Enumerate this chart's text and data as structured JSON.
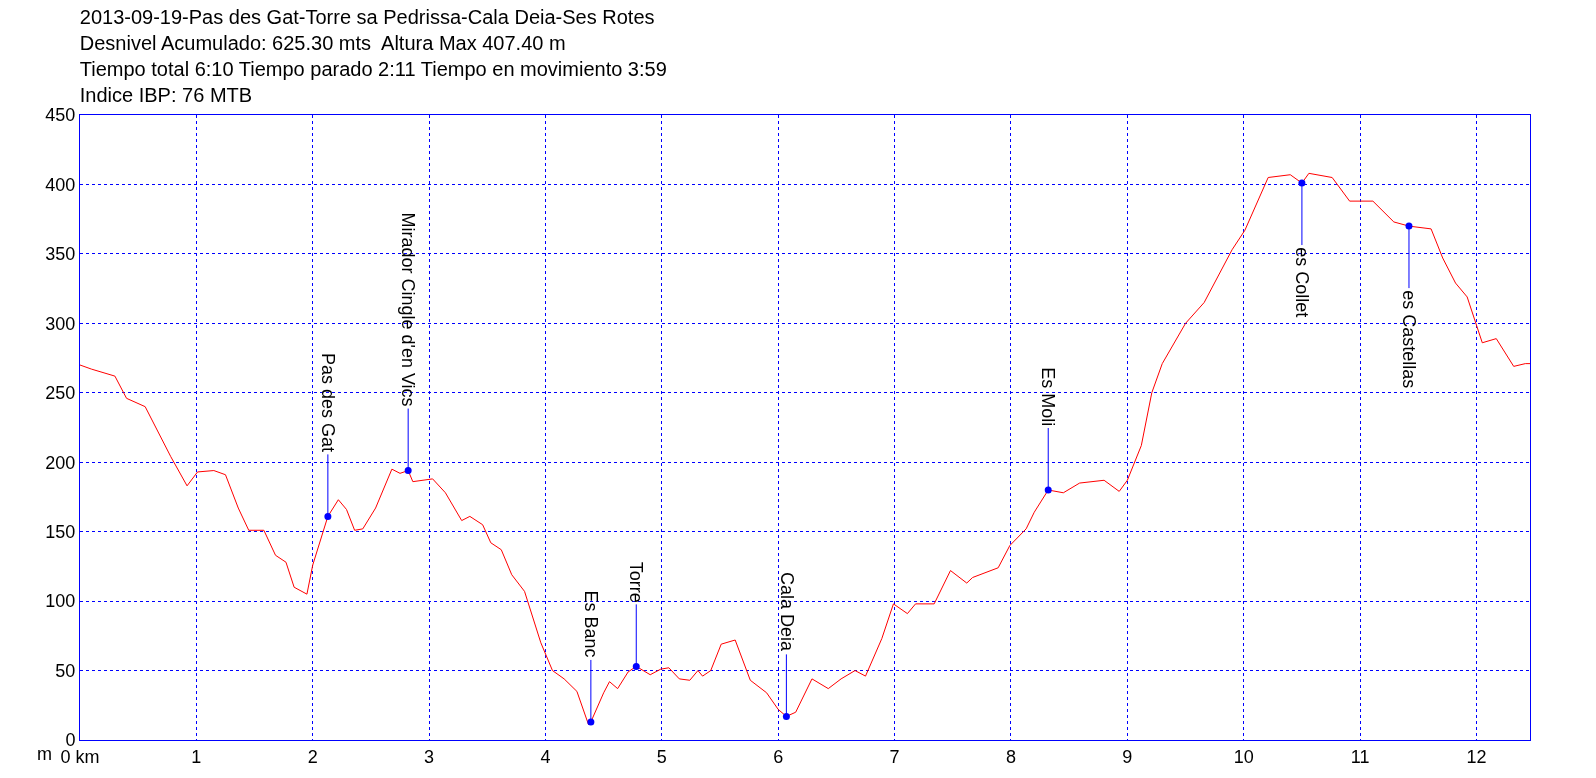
{
  "chart_data": {
    "type": "line",
    "title": "2013-09-19-Pas des Gat-Torre sa Pedrissa-Cala Deia-Ses Rotes\nDesnivel Acumulado: 625.30 mts  Altura Max 407.40 m\nTiempo total 6:10 Tiempo parado 2:11 Tiempo en movimiento 3:59\nIndice IBP: 76 MTB",
    "ylabel": "m",
    "series": [
      {
        "color": "#ff0000",
        "x": [
          0,
          0.1,
          0.3,
          0.4,
          0.56,
          0.78,
          0.92,
          1.01,
          1.15,
          1.25,
          1.36,
          1.45,
          1.58,
          1.68,
          1.77,
          1.84,
          1.95,
          2.0,
          2.13,
          2.22,
          2.29,
          2.36,
          2.43,
          2.54,
          2.68,
          2.75,
          2.82,
          2.86,
          3.03,
          3.14,
          3.28,
          3.35,
          3.46,
          3.53,
          3.62,
          3.71,
          3.82,
          3.96,
          4.06,
          4.16,
          4.27,
          4.37,
          4.39,
          4.5,
          4.55,
          4.62,
          4.71,
          4.78,
          4.9,
          4.99,
          5.06,
          5.15,
          5.24,
          5.31,
          5.35,
          5.42,
          5.51,
          5.63,
          5.76,
          5.9,
          6.0,
          6.07,
          6.15,
          6.29,
          6.43,
          6.54,
          6.66,
          6.75,
          6.89,
          6.99,
          7.11,
          7.18,
          7.34,
          7.48,
          7.62,
          7.67,
          7.89,
          7.99,
          8.13,
          8.2,
          8.32,
          8.45,
          8.59,
          8.8,
          8.93,
          9.0,
          9.12,
          9.21,
          9.3,
          9.5,
          9.66,
          9.9,
          10.01,
          10.21,
          10.4,
          10.5,
          10.56,
          10.76,
          10.91,
          11.11,
          11.29,
          11.42,
          11.61,
          11.71,
          11.82,
          11.92,
          12.05,
          12.17,
          12.32,
          12.42,
          12.46
        ],
        "values": [
          270,
          267,
          262,
          246,
          240,
          204,
          183,
          193,
          194,
          191,
          167,
          151,
          151,
          133,
          128,
          110,
          105,
          126,
          161,
          173,
          166,
          151,
          152,
          167,
          195,
          192,
          194,
          186,
          188,
          178,
          158,
          161,
          155,
          142,
          137,
          119,
          107,
          70,
          50,
          44,
          35,
          11,
          13,
          34,
          42,
          37,
          49,
          53,
          47,
          51,
          52,
          44,
          43,
          50,
          46,
          50,
          69,
          72,
          43,
          34,
          22,
          17,
          20,
          44,
          37,
          44,
          50,
          46,
          73,
          98,
          91,
          98,
          98,
          122,
          113,
          117,
          124,
          140,
          152,
          164,
          180,
          178,
          185,
          187,
          179,
          187,
          212,
          250,
          271,
          300,
          315,
          353,
          367,
          405,
          407,
          401,
          408,
          405,
          388,
          388,
          373,
          370,
          368,
          347,
          329,
          319,
          286,
          289,
          269,
          271,
          271
        ]
      }
    ],
    "annotations": [
      {
        "text": "Pas des Gat",
        "x": 2.13,
        "y": 161
      },
      {
        "text": "Mirador Cingle d'en Vics",
        "x": 2.82,
        "y": 194
      },
      {
        "text": "Es Banc",
        "x": 4.39,
        "y": 13
      },
      {
        "text": "Torre",
        "x": 4.78,
        "y": 53
      },
      {
        "text": "Cala Deia",
        "x": 6.07,
        "y": 17
      },
      {
        "text": "Es Moli",
        "x": 8.32,
        "y": 180
      },
      {
        "text": "es Collet",
        "x": 10.5,
        "y": 401
      },
      {
        "text": "es Castellas",
        "x": 11.42,
        "y": 370
      }
    ],
    "xlim": [
      0,
      12.46
    ],
    "xticks": [
      {
        "value": 0,
        "label": "0 km"
      },
      1,
      2,
      3,
      4,
      5,
      6,
      7,
      8,
      9,
      10,
      11,
      12
    ],
    "ylim": [
      0,
      450
    ],
    "yticks": [
      0,
      50,
      100,
      150,
      200,
      250,
      300,
      350,
      400,
      450
    ],
    "grid": true,
    "marker": "none",
    "line_style": "solid"
  }
}
